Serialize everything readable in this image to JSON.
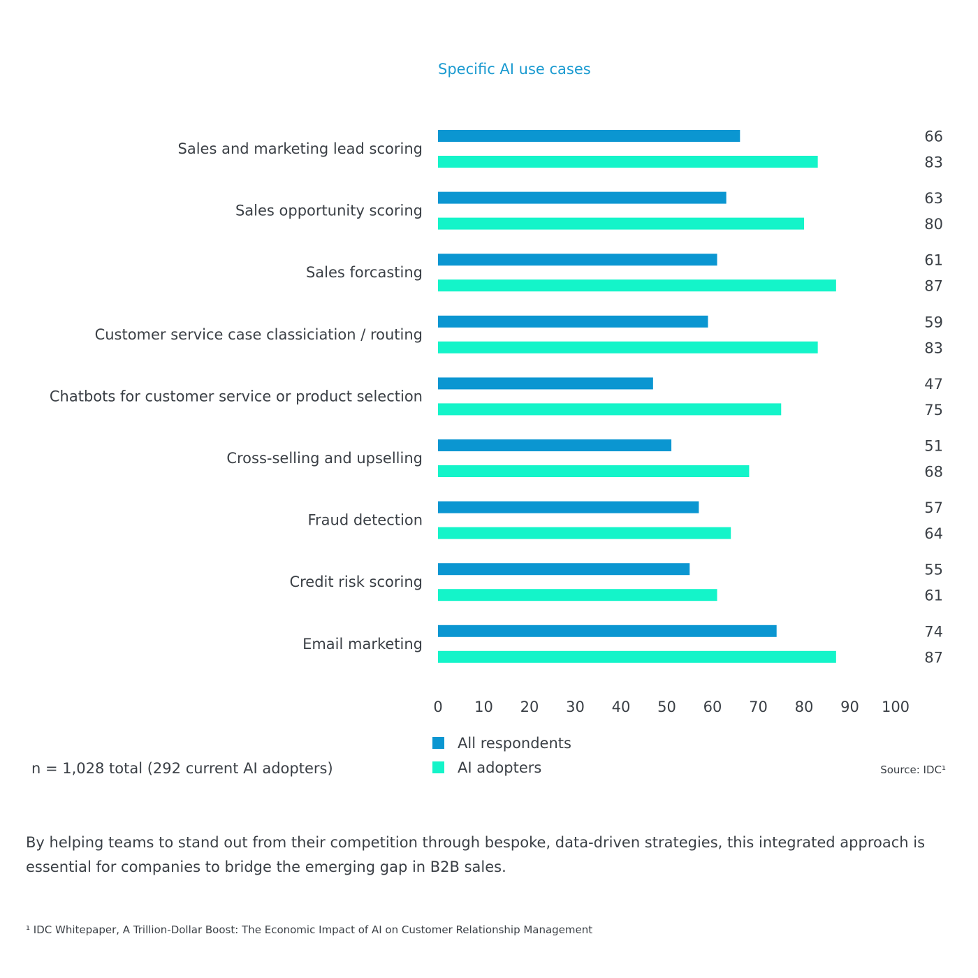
{
  "chart_data": {
    "type": "bar",
    "orientation": "horizontal",
    "title": "Specific AI use cases",
    "categories": [
      "Sales and marketing lead scoring",
      "Sales opportunity scoring",
      "Sales forcasting",
      "Customer service case classiciation / routing",
      "Chatbots for customer service or product selection",
      "Cross-selling and upselling",
      "Fraud detection",
      "Credit risk scoring",
      "Email marketing"
    ],
    "series": [
      {
        "name": "All respondents",
        "color": "#0b96d1",
        "values": [
          66,
          63,
          61,
          59,
          47,
          51,
          57,
          55,
          74
        ]
      },
      {
        "name": "AI adopters",
        "color": "#14f4c9",
        "values": [
          83,
          80,
          87,
          83,
          75,
          68,
          64,
          61,
          87
        ]
      }
    ],
    "xlim": [
      0,
      100
    ],
    "xticks": [
      0,
      10,
      20,
      30,
      40,
      50,
      60,
      70,
      80,
      90,
      100
    ],
    "grid": false,
    "legend_position": "bottom"
  },
  "sample_note": "n =  1,028 total (292 current AI adopters)",
  "source": "Source: IDC¹",
  "body_text": "By helping teams to stand out from their competition through bespoke, data-driven strategies, this integrated approach is essential for companies to bridge the emerging gap in B2B sales.",
  "footnote": "¹ IDC Whitepaper, A Trillion-Dollar Boost: The Economic Impact of AI on Customer Relationship Management"
}
